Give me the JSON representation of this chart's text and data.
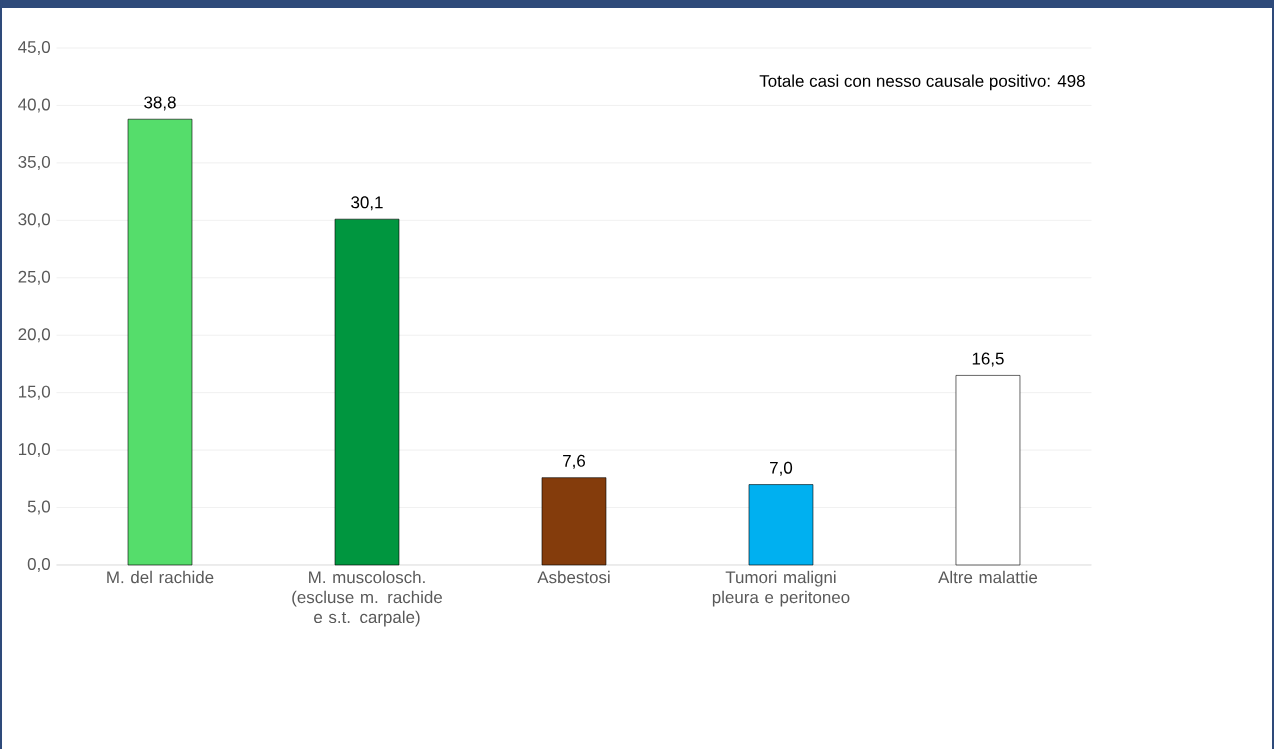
{
  "chart_data": {
    "type": "bar",
    "categories": [
      "M. del rachide",
      "M. muscolosch. (escluse m. rachide e s.t. carpale)",
      "Asbestosi",
      "Tumori maligni pleura e peritoneo",
      "Altre malattie"
    ],
    "values": [
      38.8,
      30.1,
      7.6,
      7.0,
      16.5
    ],
    "value_labels": [
      "38,8",
      "30,1",
      "7,6",
      "7,0",
      "16,5"
    ],
    "colors": [
      "#55dd6b",
      "#00963f",
      "#843c0c",
      "#00b0f0",
      "#ffffff"
    ],
    "ylim": [
      0,
      45
    ],
    "yticks": [
      {
        "value": 0,
        "label": "0,0"
      },
      {
        "value": 5,
        "label": "5,0"
      },
      {
        "value": 10,
        "label": "10,0"
      },
      {
        "value": 15,
        "label": "15,0"
      },
      {
        "value": 20,
        "label": "20,0"
      },
      {
        "value": 25,
        "label": "25,0"
      },
      {
        "value": 30,
        "label": "30,0"
      },
      {
        "value": 35,
        "label": "35,0"
      },
      {
        "value": 40,
        "label": "40,0"
      },
      {
        "value": 45,
        "label": "45,0"
      }
    ],
    "grid": "y",
    "annotations": [
      "Totale casi con nesso causale positivo: 498"
    ]
  }
}
